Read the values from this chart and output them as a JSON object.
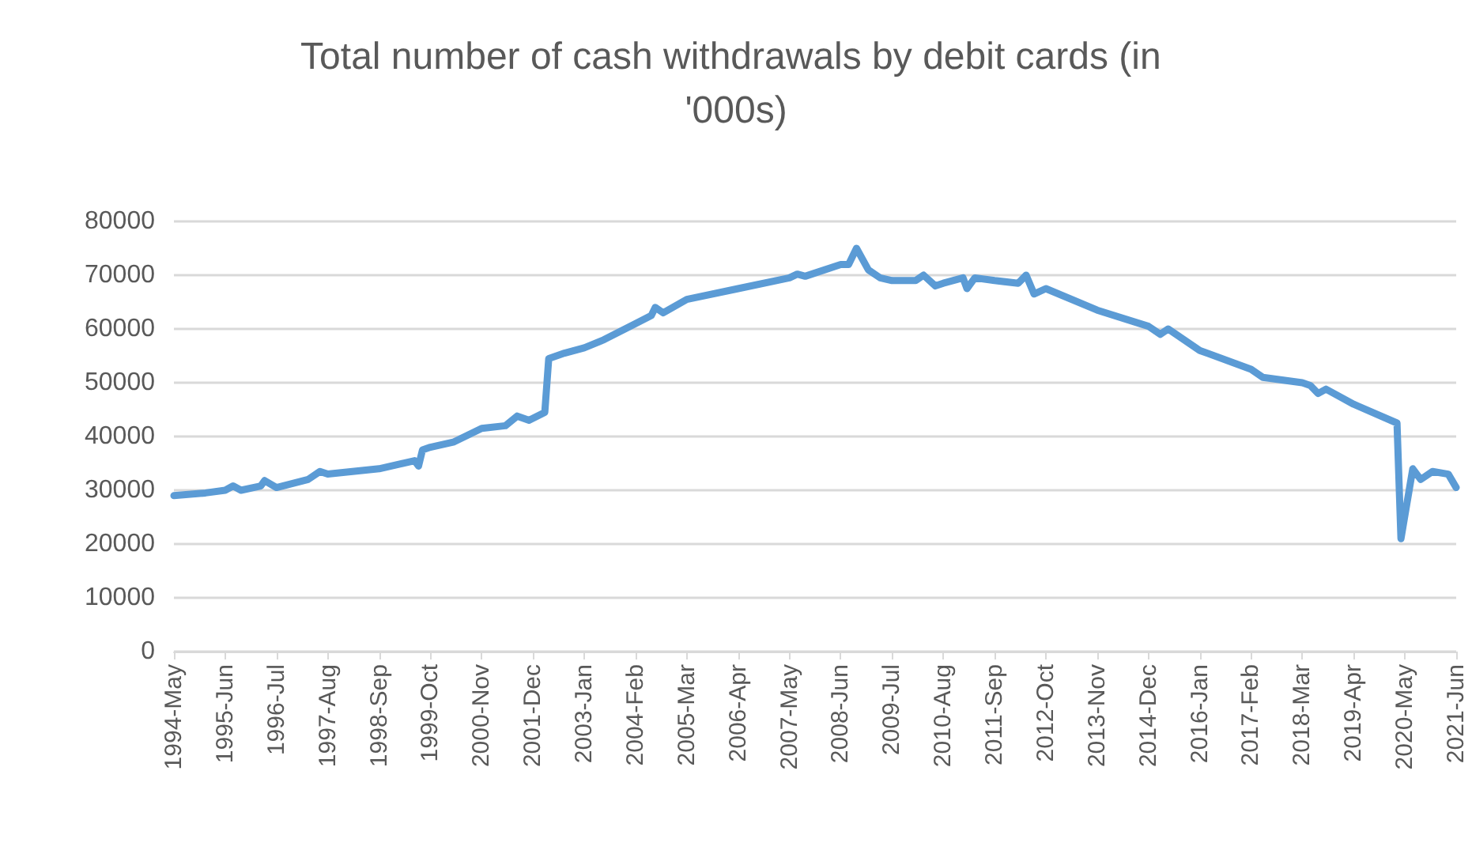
{
  "chart_data": {
    "type": "line",
    "title": "Total number of cash withdrawals by debit cards (in '000s)",
    "x": [
      "1994-05",
      "1995-01",
      "1995-06",
      "1995-08",
      "1995-10",
      "1996-03",
      "1996-04",
      "1996-07",
      "1997-03",
      "1997-06",
      "1997-08",
      "1998-09",
      "1999-06",
      "1999-07",
      "1999-08",
      "1999-10",
      "2000-04",
      "2000-11",
      "2001-05",
      "2001-08",
      "2001-11",
      "2002-03",
      "2002-04",
      "2002-08",
      "2003-01",
      "2003-06",
      "2004-02",
      "2004-06",
      "2004-07",
      "2004-09",
      "2005-03",
      "2006-04",
      "2007-05",
      "2007-07",
      "2007-09",
      "2008-06",
      "2008-08",
      "2008-10",
      "2009-01",
      "2009-04",
      "2009-07",
      "2010-01",
      "2010-03",
      "2010-06",
      "2010-08",
      "2011-01",
      "2011-02",
      "2011-04",
      "2011-09",
      "2012-03",
      "2012-05",
      "2012-07",
      "2012-10",
      "2013-11",
      "2014-12",
      "2015-03",
      "2015-05",
      "2016-01",
      "2017-02",
      "2017-05",
      "2018-03",
      "2018-05",
      "2018-07",
      "2018-09",
      "2019-04",
      "2020-03",
      "2020-04",
      "2020-07",
      "2020-09",
      "2020-12",
      "2021-04",
      "2021-06"
    ],
    "series": [
      {
        "color": "#5b9bd5",
        "values": [
          29000,
          29500,
          30000,
          30800,
          30000,
          30800,
          31800,
          30500,
          32000,
          33500,
          33000,
          34000,
          35500,
          34500,
          37500,
          38000,
          39000,
          41500,
          42000,
          43800,
          43000,
          44500,
          54500,
          55500,
          56500,
          58000,
          61000,
          62500,
          64000,
          63000,
          65500,
          67500,
          69500,
          70200,
          69800,
          72000,
          72000,
          75000,
          71000,
          69500,
          69000,
          69000,
          70000,
          68000,
          68500,
          69500,
          67500,
          69500,
          69000,
          68500,
          70000,
          66500,
          67500,
          63500,
          60500,
          59000,
          60000,
          56000,
          52500,
          51000,
          50000,
          49500,
          48000,
          48800,
          46000,
          42500,
          21000,
          34000,
          32000,
          33500,
          33000,
          30500
        ]
      }
    ],
    "xlim": [
      "1994-05",
      "2021-06"
    ],
    "xticks": [
      {
        "value": "1994-05",
        "label": "1994-May"
      },
      {
        "value": "1995-06",
        "label": "1995-Jun"
      },
      {
        "value": "1996-07",
        "label": "1996-Jul"
      },
      {
        "value": "1997-08",
        "label": "1997-Aug"
      },
      {
        "value": "1998-09",
        "label": "1998-Sep"
      },
      {
        "value": "1999-10",
        "label": "1999-Oct"
      },
      {
        "value": "2000-11",
        "label": "2000-Nov"
      },
      {
        "value": "2001-12",
        "label": "2001-Dec"
      },
      {
        "value": "2003-01",
        "label": "2003-Jan"
      },
      {
        "value": "2004-02",
        "label": "2004-Feb"
      },
      {
        "value": "2005-03",
        "label": "2005-Mar"
      },
      {
        "value": "2006-04",
        "label": "2006-Apr"
      },
      {
        "value": "2007-05",
        "label": "2007-May"
      },
      {
        "value": "2008-06",
        "label": "2008-Jun"
      },
      {
        "value": "2009-07",
        "label": "2009-Jul"
      },
      {
        "value": "2010-08",
        "label": "2010-Aug"
      },
      {
        "value": "2011-09",
        "label": "2011-Sep"
      },
      {
        "value": "2012-10",
        "label": "2012-Oct"
      },
      {
        "value": "2013-11",
        "label": "2013-Nov"
      },
      {
        "value": "2014-12",
        "label": "2014-Dec"
      },
      {
        "value": "2016-01",
        "label": "2016-Jan"
      },
      {
        "value": "2017-02",
        "label": "2017-Feb"
      },
      {
        "value": "2018-03",
        "label": "2018-Mar"
      },
      {
        "value": "2019-04",
        "label": "2019-Apr"
      },
      {
        "value": "2020-05",
        "label": "2020-May"
      },
      {
        "value": "2021-06",
        "label": "2021-Jun"
      }
    ],
    "ylim": [
      0,
      80000
    ],
    "yticks": [
      0,
      10000,
      20000,
      30000,
      40000,
      50000,
      60000,
      70000,
      80000
    ],
    "grid": "y",
    "marker": "none",
    "line_style": "solid"
  }
}
